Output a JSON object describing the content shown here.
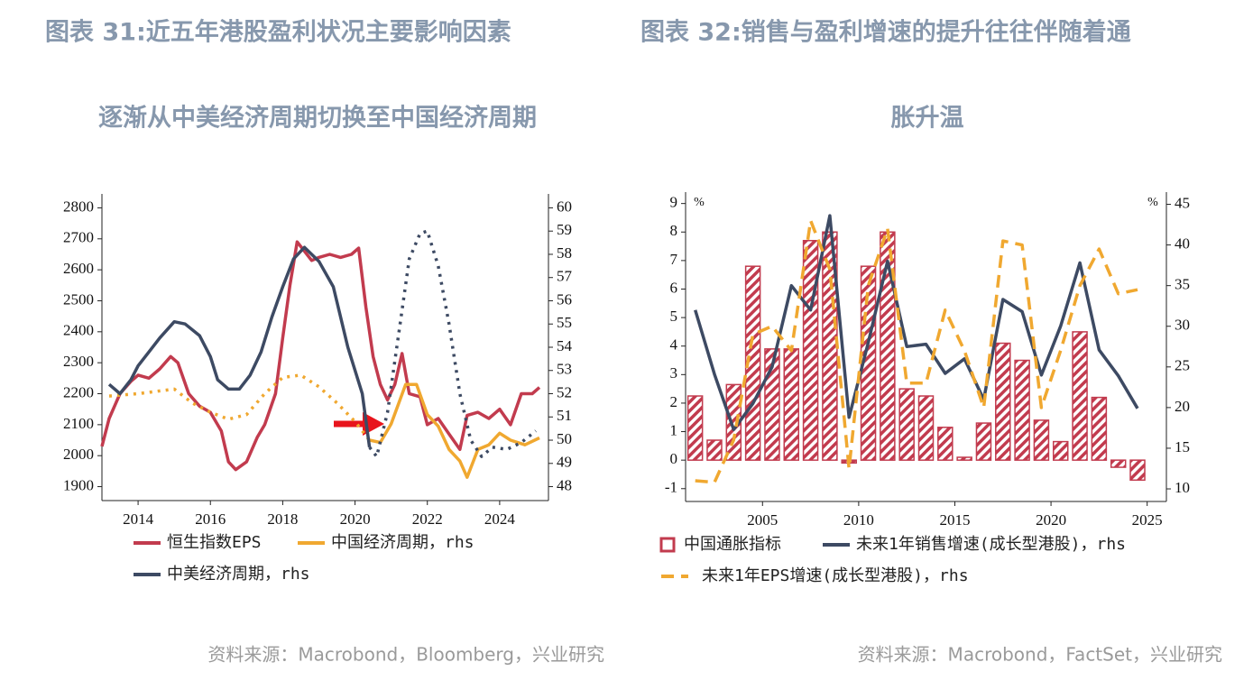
{
  "chart_data": [
    {
      "type": "line",
      "title": [
        "图表 31:近五年港股盈利状况主要影响因素",
        "逐渐从中美经济周期切换至中国经济周期"
      ],
      "source": "资料来源：Macrobond，Bloomberg，兴业研究",
      "xlim": [
        2013,
        2025.35
      ],
      "xticks": [
        2014,
        2016,
        2018,
        2020,
        2022,
        2024
      ],
      "ylim": [
        1855,
        2845
      ],
      "yticks": [
        1900,
        2000,
        2100,
        2200,
        2300,
        2400,
        2500,
        2600,
        2700,
        2800
      ],
      "y2lim": [
        47.4,
        60.6
      ],
      "y2ticks": [
        48,
        49,
        50,
        51,
        52,
        53,
        54,
        55,
        56,
        57,
        58,
        59,
        60
      ],
      "series": [
        {
          "name": "恒生指数EPS",
          "color": "#c23b4e",
          "type": "line",
          "x": [
            2013.0,
            2013.2,
            2013.5,
            2013.8,
            2014.0,
            2014.3,
            2014.6,
            2014.9,
            2015.1,
            2015.4,
            2015.7,
            2016.0,
            2016.3,
            2016.5,
            2016.7,
            2017.0,
            2017.3,
            2017.5,
            2017.8,
            2018.0,
            2018.2,
            2018.4,
            2018.6,
            2018.8,
            2019.0,
            2019.3,
            2019.6,
            2019.9,
            2020.1,
            2020.3,
            2020.5,
            2020.7,
            2020.9,
            2021.1,
            2021.3,
            2021.5,
            2021.8,
            2022.0,
            2022.3,
            2022.6,
            2022.9,
            2023.1,
            2023.4,
            2023.7,
            2024.0,
            2024.3,
            2024.6,
            2024.9,
            2025.1
          ],
          "values": [
            2030,
            2120,
            2200,
            2240,
            2260,
            2250,
            2280,
            2320,
            2300,
            2200,
            2160,
            2140,
            2080,
            1980,
            1955,
            1980,
            2060,
            2100,
            2200,
            2380,
            2550,
            2690,
            2660,
            2630,
            2640,
            2650,
            2640,
            2650,
            2670,
            2480,
            2320,
            2230,
            2180,
            2230,
            2330,
            2200,
            2190,
            2100,
            2120,
            2070,
            2020,
            2130,
            2140,
            2120,
            2150,
            2100,
            2200,
            2200,
            2220
          ]
        },
        {
          "name": "中国经济周期，rhs",
          "color": "#f0a830",
          "type": "line",
          "axis": "y2",
          "dotted_x": [
            2013,
            2020.4
          ],
          "x": [
            2013.2,
            2014.0,
            2014.5,
            2015.0,
            2015.5,
            2016.0,
            2016.5,
            2017.0,
            2017.5,
            2018.0,
            2018.5,
            2019.0,
            2019.5,
            2020.0,
            2020.4,
            2020.7,
            2021.0,
            2021.4,
            2021.7,
            2022.0,
            2022.3,
            2022.6,
            2022.9,
            2023.1,
            2023.4,
            2023.7,
            2024.0,
            2024.3,
            2024.7,
            2025.1
          ],
          "values": [
            51.9,
            52.0,
            52.1,
            52.2,
            51.6,
            51.2,
            50.9,
            51.1,
            52.0,
            52.7,
            52.8,
            52.3,
            51.6,
            50.8,
            50.0,
            49.9,
            50.7,
            52.4,
            52.4,
            51.1,
            50.6,
            49.6,
            49.1,
            48.4,
            49.6,
            49.8,
            50.3,
            50.0,
            49.8,
            50.1
          ]
        },
        {
          "name": "中美经济周期，rhs",
          "color": "#3d4a63",
          "type": "line",
          "axis": "y2",
          "dotted_x": [
            2020.5,
            2025.35
          ],
          "x": [
            2013.2,
            2013.5,
            2013.8,
            2014.0,
            2014.3,
            2014.6,
            2015.0,
            2015.3,
            2015.7,
            2016.0,
            2016.2,
            2016.5,
            2016.8,
            2017.1,
            2017.4,
            2017.7,
            2018.0,
            2018.3,
            2018.6,
            2019.0,
            2019.4,
            2019.8,
            2020.2,
            2020.4,
            2020.6,
            2020.9,
            2021.2,
            2021.5,
            2021.8,
            2022.0,
            2022.3,
            2022.6,
            2022.9,
            2023.2,
            2023.5,
            2023.8,
            2024.2,
            2024.6,
            2025.0
          ],
          "values": [
            52.4,
            52.0,
            52.6,
            53.2,
            53.8,
            54.4,
            55.1,
            55.0,
            54.5,
            53.6,
            52.6,
            52.2,
            52.2,
            52.8,
            53.8,
            55.3,
            56.6,
            57.8,
            58.3,
            57.7,
            56.6,
            54.0,
            52.0,
            49.7,
            49.3,
            51.2,
            54.5,
            57.8,
            58.9,
            59.0,
            57.5,
            55.0,
            52.0,
            50.0,
            49.3,
            49.7,
            49.6,
            49.9,
            50.4
          ]
        }
      ]
    },
    {
      "type": "combo",
      "title": [
        "图表 32:销售与盈利增速的提升往往伴随着通",
        "胀升温"
      ],
      "source": "资料来源：Macrobond，FactSet，兴业研究",
      "y_unit": "%",
      "y2_unit": "%",
      "xlim": [
        2001,
        2026
      ],
      "xticks": [
        2005,
        2010,
        2015,
        2020,
        2025
      ],
      "ylim": [
        -1.45,
        9.4
      ],
      "yticks": [
        -1,
        0,
        1,
        2,
        3,
        4,
        5,
        6,
        7,
        8,
        9
      ],
      "y2lim": [
        8.45,
        46.5
      ],
      "y2ticks": [
        10,
        15,
        20,
        25,
        30,
        35,
        40,
        45
      ],
      "x": [
        2001.5,
        2002.5,
        2003.5,
        2004.5,
        2005.5,
        2006.5,
        2007.5,
        2008.5,
        2009.5,
        2010.5,
        2011.5,
        2012.5,
        2013.5,
        2014.5,
        2015.5,
        2016.5,
        2017.5,
        2018.5,
        2019.5,
        2020.5,
        2021.5,
        2022.5,
        2023.5,
        2024.5
      ],
      "series": [
        {
          "name": "中国通胀指标",
          "color": "#c23b4e",
          "type": "bar",
          "values": [
            2.25,
            0.7,
            2.65,
            6.8,
            3.9,
            3.9,
            7.7,
            8.0,
            -0.1,
            6.8,
            8.0,
            2.5,
            2.25,
            1.15,
            0.1,
            1.3,
            4.1,
            3.5,
            1.4,
            0.65,
            4.5,
            2.2,
            -0.25,
            -0.7
          ]
        },
        {
          "name": "未来1年销售增速(成长型港股)，rhs",
          "color": "#3d4a63",
          "type": "line",
          "axis": "y2",
          "values": [
            32,
            24.1,
            17.3,
            20.5,
            25,
            35,
            32,
            43.6,
            18.8,
            28,
            38,
            27.5,
            27.8,
            24.2,
            26,
            21,
            33.3,
            31.8,
            24,
            30,
            37.8,
            27.1,
            23.9,
            19.9
          ]
        },
        {
          "name": "未来1年EPS增速(成长型港股)，rhs",
          "color": "#f0a830",
          "type": "line",
          "axis": "y2",
          "dash": "dashed",
          "values": [
            11,
            10.8,
            16,
            29,
            30,
            27,
            43,
            37,
            12.5,
            35,
            42,
            23,
            23,
            32,
            27,
            20,
            40.5,
            40,
            20,
            27,
            35,
            39.5,
            34,
            34.5
          ]
        }
      ]
    }
  ]
}
